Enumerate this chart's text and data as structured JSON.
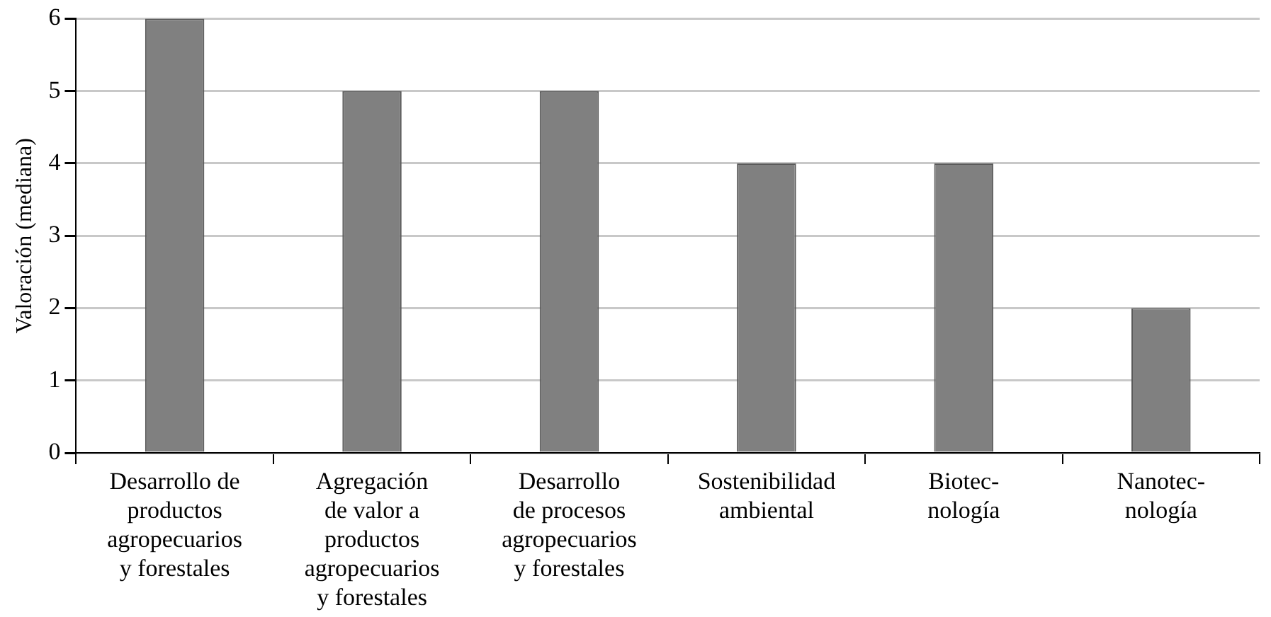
{
  "chart_data": {
    "type": "bar",
    "ylabel": "Valoración (mediana)",
    "categories": [
      "Desarrollo de\nproductos\nagropecuarios\ny forestales",
      "Agregación\nde valor a\nproductos\nagropecuarios\ny forestales",
      "Desarrollo\nde procesos\nagropecuarios\ny forestales",
      "Sostenibilidad\nambiental",
      "Biotec-\nnología",
      "Nanotec-\nnología"
    ],
    "values": [
      6,
      5,
      5,
      4,
      4,
      2
    ],
    "color": "#808080",
    "ylim": [
      0,
      6
    ],
    "yticks": [
      0,
      1,
      2,
      3,
      4,
      5,
      6
    ],
    "grid": "y",
    "legend": false
  }
}
